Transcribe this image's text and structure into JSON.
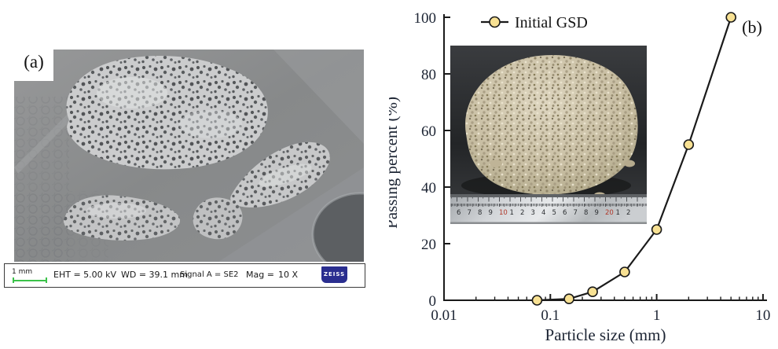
{
  "figure": {
    "panel_a_label": "(a)",
    "panel_b_label": "(b)"
  },
  "panel_a": {
    "label": "(a)",
    "content": "SEM micrograph of porous coral sand particles",
    "info_bar": {
      "scale_label": "1 mm",
      "eht": "EHT =  5.00 kV",
      "wd": "WD = 39.1 mm",
      "signal": "Signal A = SE2",
      "mag_label": "Mag =",
      "mag_value": "10 X",
      "brand": "ZEISS"
    }
  },
  "colors": {
    "marker_fill": "#f8e193",
    "line": "#1a1a1a",
    "scale_bar_green": "#3bc24a",
    "zeiss_blue": "#2a2e8f",
    "chart_text": "#1c2433"
  },
  "chart_data": {
    "type": "line",
    "x_scale": "log",
    "title": "",
    "xlabel": "Particle size (mm)",
    "ylabel": "Passing percent (%)",
    "xlim": [
      0.01,
      10
    ],
    "ylim": [
      0,
      100
    ],
    "x_ticks": [
      0.01,
      0.1,
      1,
      10
    ],
    "x_tick_labels": [
      "0.01",
      "0.1",
      "1",
      "10"
    ],
    "y_ticks": [
      0,
      20,
      40,
      60,
      80,
      100
    ],
    "grid": false,
    "panel_label": "(b)",
    "legend": {
      "position": "top-inside-left",
      "entries": [
        "Initial GSD"
      ]
    },
    "series": [
      {
        "name": "Initial GSD",
        "marker": "circle",
        "marker_fill": "#f8e193",
        "marker_stroke": "#1a1a1a",
        "line_color": "#1a1a1a",
        "points": [
          {
            "x": 0.075,
            "y": 0
          },
          {
            "x": 0.15,
            "y": 0.5
          },
          {
            "x": 0.25,
            "y": 3
          },
          {
            "x": 0.5,
            "y": 10
          },
          {
            "x": 1,
            "y": 25
          },
          {
            "x": 2,
            "y": 55
          },
          {
            "x": 5,
            "y": 100
          }
        ]
      }
    ],
    "inset_photo": {
      "content": "pile of coral sand grains on dark background with steel ruler",
      "ruler_numbers": [
        "6",
        "7",
        "8",
        "9",
        "10",
        "1",
        "2",
        "3",
        "4",
        "5",
        "6",
        "7",
        "8",
        "9",
        "20",
        "1",
        "2"
      ],
      "ruler_red_numbers": [
        "10",
        "20"
      ]
    }
  }
}
